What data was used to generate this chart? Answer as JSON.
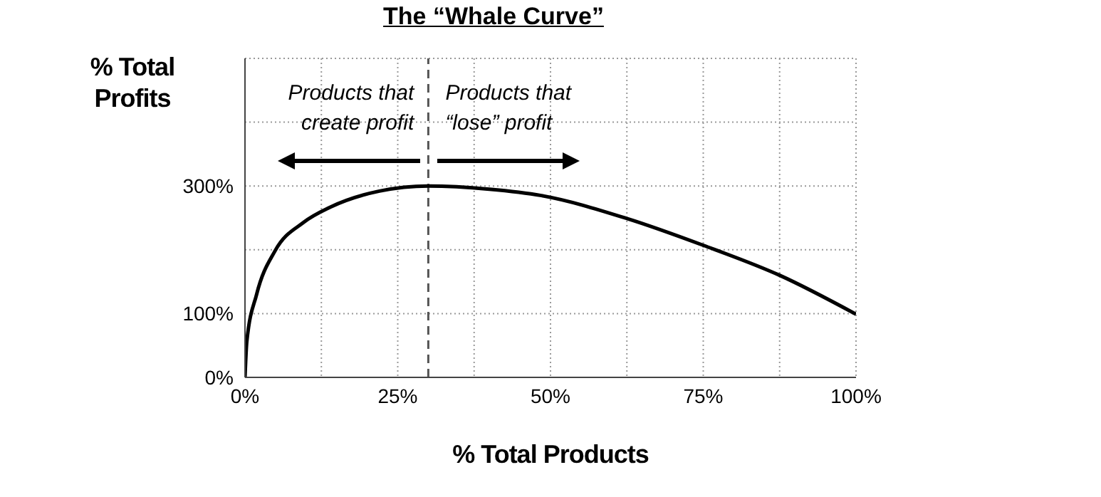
{
  "chart_data": {
    "type": "line",
    "title": "The “Whale Curve”",
    "xlabel": "% Total Products",
    "ylabel": "% Total Profits",
    "x": [
      0,
      0.3,
      1.9,
      4.9,
      9.6,
      14,
      22,
      30,
      40,
      48.5,
      62.5,
      75,
      87.5,
      100
    ],
    "series": [
      {
        "color": "#000000",
        "values": [
          0,
          56,
          130,
          198,
          243,
          267,
          292,
          300,
          295,
          285,
          249,
          207,
          160,
          99
        ]
      }
    ],
    "xlim": [
      0,
      100
    ],
    "xticks": [
      {
        "value": 0,
        "label": "0%"
      },
      {
        "value": 12.5,
        "label": null
      },
      {
        "value": 25,
        "label": "25%"
      },
      {
        "value": 37.5,
        "label": null
      },
      {
        "value": 50,
        "label": "50%"
      },
      {
        "value": 62.5,
        "label": null
      },
      {
        "value": 75,
        "label": "75%"
      },
      {
        "value": 87.5,
        "label": null
      },
      {
        "value": 100,
        "label": "100%"
      }
    ],
    "ylim": [
      0,
      500
    ],
    "yticks": [
      {
        "value": 0,
        "label": "0%"
      },
      {
        "value": 100,
        "label": "100%"
      },
      {
        "value": 200,
        "label": null
      },
      {
        "value": 300,
        "label": "300%"
      },
      {
        "value": 400,
        "label": null
      },
      {
        "value": 500,
        "label": null
      }
    ],
    "grid": true,
    "marker": "none",
    "line_style": "solid",
    "ref_lines": [
      {
        "axis": "x",
        "value": 30,
        "color": "#555555",
        "line_style": "dashed"
      }
    ],
    "annotations": [
      "Products that create profit",
      "Products that “lose” profit"
    ]
  }
}
